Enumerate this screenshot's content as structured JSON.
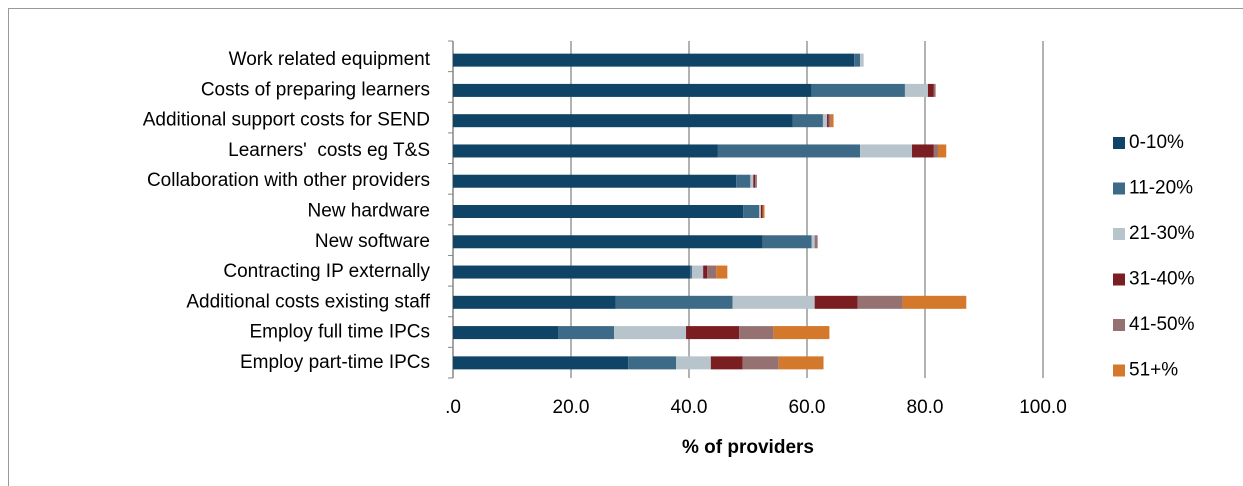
{
  "chart_data": {
    "type": "stacked-barh",
    "xlabel": "% of providers",
    "categories": [
      "Work related equipment",
      "Costs of preparing learners",
      "Additional support costs for SEND",
      "Learners'  costs eg T&S",
      "Collaboration with other providers",
      "New hardware",
      "New software",
      "Contracting IP externally",
      "Additional costs existing staff",
      "Employ full time IPCs",
      "Employ part-time IPCs"
    ],
    "series": [
      {
        "name": "0-10%",
        "color": "#0f4466",
        "values": [
          68.0,
          60.8,
          57.6,
          44.9,
          48.0,
          49.2,
          52.5,
          40.2,
          27.6,
          17.8,
          29.7
        ]
      },
      {
        "name": "11-20%",
        "color": "#3d6a87",
        "values": [
          1.0,
          15.8,
          5.1,
          24.1,
          2.4,
          2.7,
          8.3,
          0.3,
          19.8,
          9.5,
          8.1
        ]
      },
      {
        "name": "21-30%",
        "color": "#b8c4cb",
        "values": [
          0.6,
          3.9,
          0.7,
          8.8,
          0.5,
          0.3,
          0.5,
          1.9,
          13.9,
          12.2,
          5.9
        ]
      },
      {
        "name": "31-40%",
        "color": "#7b1e22",
        "values": [
          0,
          1.0,
          0.3,
          3.7,
          0.3,
          0.3,
          0,
          0.7,
          7.3,
          9.0,
          5.4
        ]
      },
      {
        "name": "41-50%",
        "color": "#957172",
        "values": [
          0,
          0.3,
          0.3,
          0.7,
          0.3,
          0,
          0.5,
          1.5,
          7.6,
          5.8,
          6.1
        ]
      },
      {
        "name": "51+%",
        "color": "#d4782b",
        "values": [
          0,
          0,
          0.5,
          1.4,
          0,
          0.3,
          0,
          1.9,
          10.8,
          9.5,
          7.6
        ]
      }
    ],
    "xlim": [
      0,
      100
    ],
    "xticks": [
      {
        "value": 0,
        "label": ".0"
      },
      {
        "value": 20,
        "label": "20.0"
      },
      {
        "value": 40,
        "label": "40.0"
      },
      {
        "value": 60,
        "label": "60.0"
      },
      {
        "value": 80,
        "label": "80.0"
      },
      {
        "value": 100,
        "label": "100.0"
      }
    ],
    "grid": true,
    "legend": "right"
  }
}
